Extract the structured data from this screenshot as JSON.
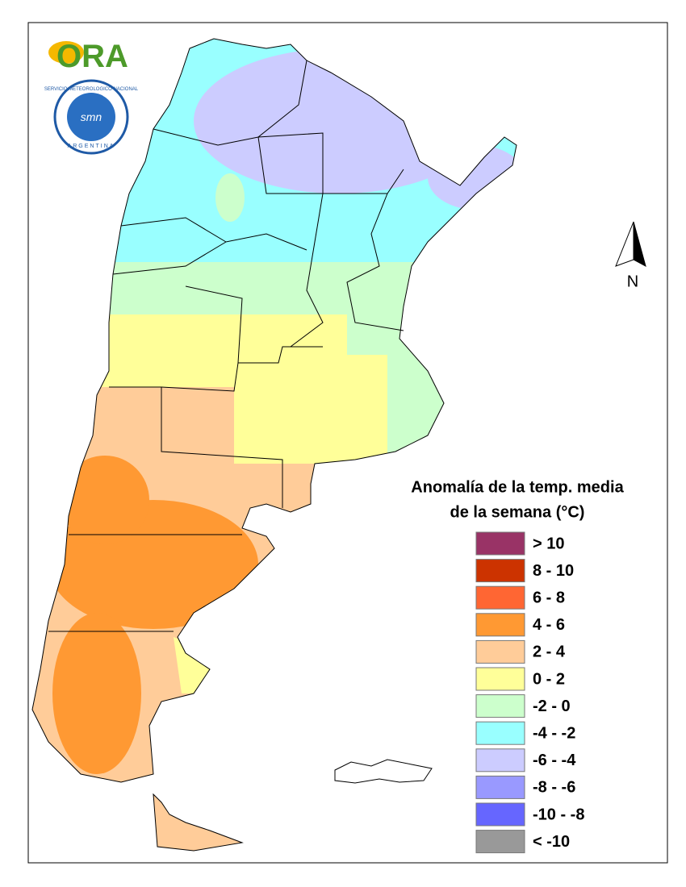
{
  "logo": {
    "ora": "ORA",
    "smn_ring_top": "SERVICIO METEOROLOGICO NACIONAL",
    "smn_ring_bottom": "ARGENTINA",
    "smn_center": "smn"
  },
  "north_arrow": "N",
  "legend": {
    "title_lines": [
      "Anomalía de la temp. media",
      "de la semana (°C)"
    ],
    "items": [
      {
        "label": "> 10",
        "color": "#993366"
      },
      {
        "label": "8 - 10",
        "color": "#cc3300"
      },
      {
        "label": "6 - 8",
        "color": "#ff6633"
      },
      {
        "label": "4 - 6",
        "color": "#ff9933"
      },
      {
        "label": "2 - 4",
        "color": "#ffcc99"
      },
      {
        "label": "0 - 2",
        "color": "#ffff99"
      },
      {
        "label": "-2 - 0",
        "color": "#ccffcc"
      },
      {
        "label": "-4 - -2",
        "color": "#99ffff"
      },
      {
        "label": "-6 - -4",
        "color": "#ccccff"
      },
      {
        "label": "-8 - -6",
        "color": "#9999ff"
      },
      {
        "label": "-10 - -8",
        "color": "#6666ff"
      },
      {
        "label": "< -10",
        "color": "#999999"
      }
    ]
  }
}
